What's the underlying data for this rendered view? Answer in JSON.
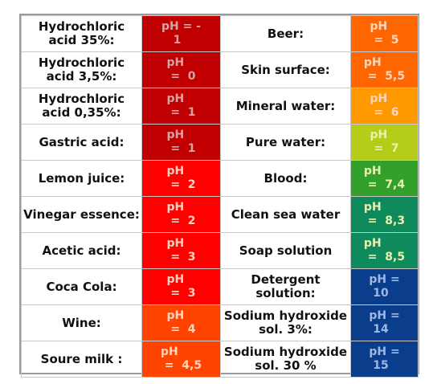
{
  "rows": [
    {
      "left_name": "Hydrochloric acid 35%:",
      "left_value": "pH = -\n   1",
      "left_color": "#c00000",
      "right_name": "Beer:",
      "right_value": "pH\n =  5",
      "right_color": "#ff6600"
    },
    {
      "left_name": "Hydrochloric acid 3,5%:",
      "left_value": "pH\n =  0",
      "left_color": "#c00000",
      "right_name": "Skin surface:",
      "right_value": "pH\n =  5,5",
      "right_color": "#ff6600"
    },
    {
      "left_name": "Hydrochloric acid 0,35%:",
      "left_value": "pH\n =  1",
      "left_color": "#c00000",
      "right_name": "Mineral water:",
      "right_value": "pH\n =  6",
      "right_color": "#ff9900"
    },
    {
      "left_name": "Gastric acid:",
      "left_value": "pH\n =  1",
      "left_color": "#c00000",
      "right_name": "Pure water:",
      "right_value": "pH\n =  7",
      "right_color": "#b5cc18"
    },
    {
      "left_name": "Lemon juice:",
      "left_value": "pH\n =  2",
      "left_color": "#ff0000",
      "right_name": "Blood:",
      "right_value": "pH\n =  7,4",
      "right_color": "#33a02c"
    },
    {
      "left_name": "Vinegar essence:",
      "left_value": "pH\n =  2",
      "left_color": "#ff0000",
      "right_name": "Clean sea water",
      "right_value": "pH\n =  8,3",
      "right_color": "#0f8a5c"
    },
    {
      "left_name": "Acetic acid:",
      "left_value": "pH\n =  3",
      "left_color": "#ff0000",
      "right_name": "Soap solution",
      "right_value": "pH\n =  8,5",
      "right_color": "#0f8a5c"
    },
    {
      "left_name": "Coca Cola:",
      "left_value": "pH\n =  3",
      "left_color": "#ff0000",
      "right_name": "Detergent solution:",
      "right_value": "pH =\n 10",
      "right_color": "#0a3d8c"
    },
    {
      "left_name": "Wine:",
      "left_value": "pH\n =  4",
      "left_color": "#ff4400",
      "right_name": "Sodium hydroxide sol. 3%:",
      "right_value": "pH =\n 14",
      "right_color": "#0a3d8c"
    },
    {
      "left_name": "Soure milk :",
      "left_value": "pH\n =  4,5",
      "left_color": "#ff4400",
      "right_name": "Sodium hydroxide sol. 30 %",
      "right_value": "pH =\n 15",
      "right_color": "#0a3d8c"
    }
  ],
  "colors": {
    "value_text_dark_red": "#d9a3a3",
    "value_text_light": "#ffd4c0",
    "value_text_green": "#e8f2b0",
    "value_text_blue": "#9eb8e6",
    "grid_border": "#c8c8c8",
    "frame_border": "#9a9a9a"
  }
}
